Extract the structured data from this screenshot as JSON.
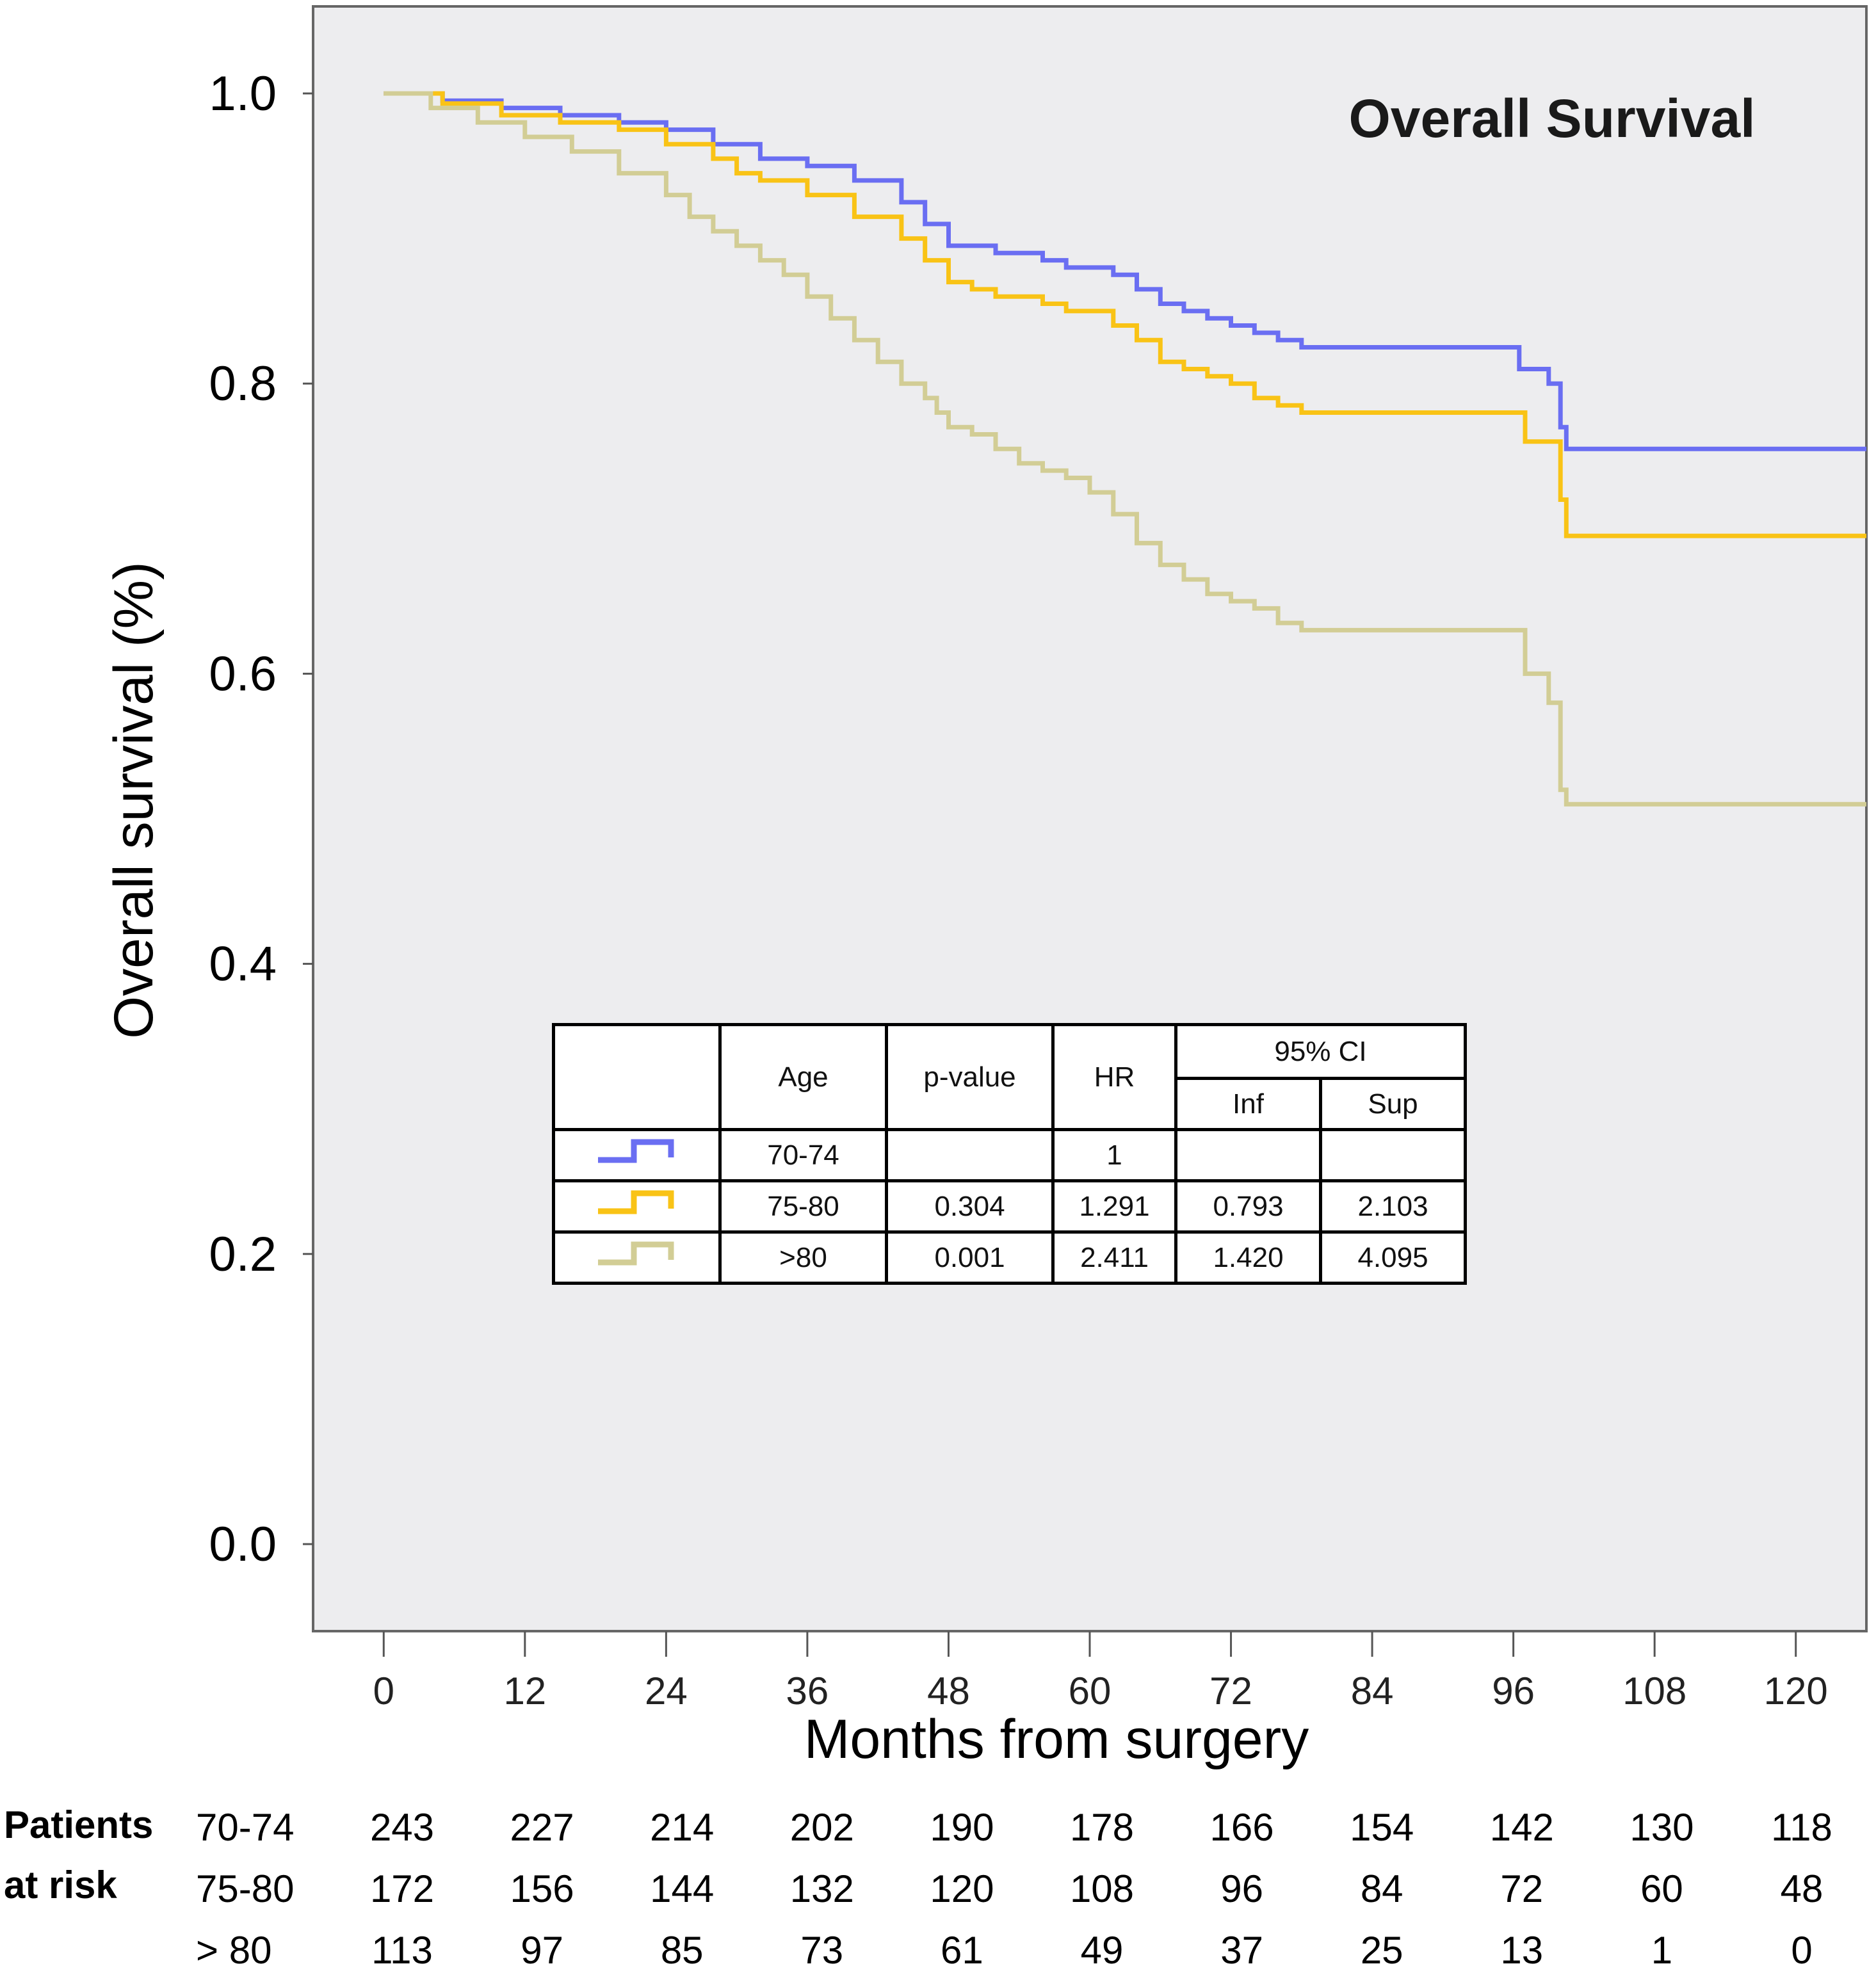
{
  "chart_data": {
    "type": "line",
    "title": "Overall Survival",
    "xlabel": "Months from surgery",
    "ylabel": "Overall survival (%)",
    "xlim": [
      -6,
      126
    ],
    "ylim": [
      -0.06,
      1.06
    ],
    "xticks": [
      "0",
      "12",
      "24",
      "36",
      "48",
      "60",
      "72",
      "84",
      "96",
      "108",
      "120"
    ],
    "yticks": [
      "0.0",
      "0.2",
      "0.4",
      "0.6",
      "0.8",
      "1.0"
    ],
    "series": [
      {
        "name": "70-74",
        "color": "#6a6ef2",
        "x": [
          0,
          5,
          10,
          15,
          20,
          24,
          28,
          32,
          36,
          40,
          44,
          46,
          48,
          52,
          56,
          58,
          62,
          64,
          66,
          68,
          70,
          72,
          74,
          76,
          78,
          80,
          84,
          88,
          92,
          96,
          96.5,
          99,
          100,
          100.5,
          126
        ],
        "y": [
          1.0,
          0.995,
          0.99,
          0.985,
          0.98,
          0.975,
          0.965,
          0.955,
          0.95,
          0.94,
          0.925,
          0.91,
          0.895,
          0.89,
          0.885,
          0.88,
          0.875,
          0.865,
          0.855,
          0.85,
          0.845,
          0.84,
          0.835,
          0.83,
          0.825,
          0.825,
          0.825,
          0.825,
          0.825,
          0.825,
          0.81,
          0.8,
          0.77,
          0.755,
          0.755
        ]
      },
      {
        "name": "75-80",
        "color": "#f9c316",
        "x": [
          0,
          5,
          10,
          15,
          20,
          24,
          28,
          30,
          32,
          36,
          40,
          44,
          46,
          48,
          50,
          52,
          56,
          58,
          62,
          64,
          66,
          68,
          70,
          72,
          74,
          76,
          78,
          80,
          84,
          88,
          92,
          96,
          97,
          100,
          100.5,
          126
        ],
        "y": [
          1.0,
          0.993,
          0.985,
          0.98,
          0.975,
          0.965,
          0.955,
          0.945,
          0.94,
          0.93,
          0.915,
          0.9,
          0.885,
          0.87,
          0.865,
          0.86,
          0.855,
          0.85,
          0.84,
          0.83,
          0.815,
          0.81,
          0.805,
          0.8,
          0.79,
          0.785,
          0.78,
          0.78,
          0.78,
          0.78,
          0.78,
          0.78,
          0.76,
          0.72,
          0.695,
          0.695
        ]
      },
      {
        "name": ">80",
        "color": "#d2cd95",
        "x": [
          0,
          4,
          8,
          12,
          16,
          20,
          24,
          26,
          28,
          30,
          32,
          34,
          36,
          38,
          40,
          42,
          44,
          46,
          47,
          48,
          50,
          52,
          54,
          56,
          58,
          60,
          62,
          64,
          66,
          68,
          70,
          72,
          74,
          76,
          78,
          80,
          84,
          88,
          92,
          96,
          97,
          99,
          100,
          100.5,
          126
        ],
        "y": [
          1.0,
          0.99,
          0.98,
          0.97,
          0.96,
          0.945,
          0.93,
          0.915,
          0.905,
          0.895,
          0.885,
          0.875,
          0.86,
          0.845,
          0.83,
          0.815,
          0.8,
          0.79,
          0.78,
          0.77,
          0.765,
          0.755,
          0.745,
          0.74,
          0.735,
          0.725,
          0.71,
          0.69,
          0.675,
          0.665,
          0.655,
          0.65,
          0.645,
          0.635,
          0.63,
          0.63,
          0.63,
          0.63,
          0.63,
          0.63,
          0.6,
          0.58,
          0.52,
          0.51,
          0.51
        ]
      }
    ]
  },
  "hazard_table": {
    "headers": {
      "age": "Age",
      "p_value": "p-value",
      "hr": "HR",
      "ci": "95% CI",
      "inf": "Inf",
      "sup": "Sup"
    },
    "rows": [
      {
        "age": "70-74",
        "p_value": "",
        "hr": "1",
        "inf": "",
        "sup": "",
        "color": "#6a6ef2"
      },
      {
        "age": "75-80",
        "p_value": "0.304",
        "hr": "1.291",
        "inf": "0.793",
        "sup": "2.103",
        "color": "#f9c316"
      },
      {
        "age": ">80",
        "p_value": "0.001",
        "hr": "2.411",
        "inf": "1.420",
        "sup": "4.095",
        "color": "#d2cd95"
      }
    ]
  },
  "risk_table": {
    "label_line1": "Patients",
    "label_line2": "at risk",
    "groups": [
      {
        "name": "70-74",
        "values": [
          "243",
          "227",
          "214",
          "202",
          "190",
          "178",
          "166",
          "154",
          "142",
          "130",
          "118"
        ]
      },
      {
        "name": "75-80",
        "values": [
          "172",
          "156",
          "144",
          "132",
          "120",
          "108",
          "96",
          "84",
          "72",
          "60",
          "48"
        ]
      },
      {
        "name": "> 80",
        "values": [
          "113",
          "97",
          "85",
          "73",
          "61",
          "49",
          "37",
          "25",
          "13",
          "1",
          "0"
        ]
      }
    ]
  }
}
